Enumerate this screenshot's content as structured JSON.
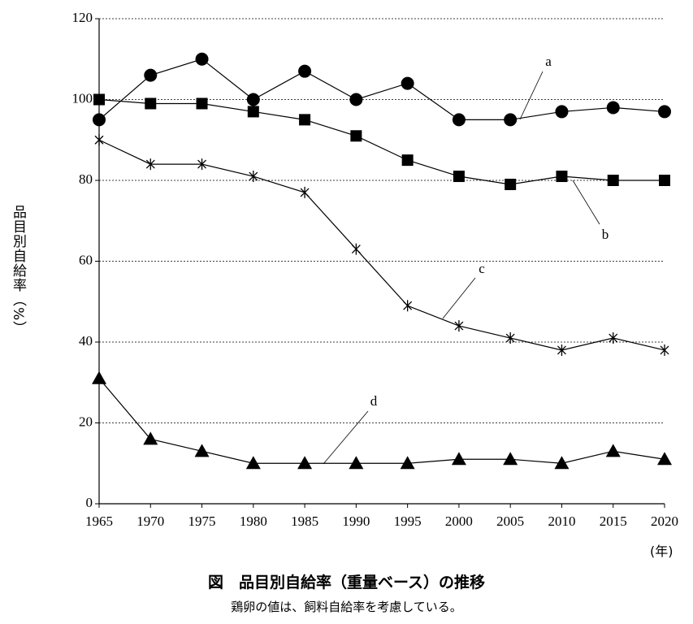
{
  "chart_data": {
    "type": "line",
    "title": "図　品目別自給率（重量ベース）の推移",
    "subtitle": "鶏卵の値は、飼料自給率を考慮している。",
    "y_label": "品目別自給率（%）",
    "x_label": "(年)",
    "x": [
      1965,
      1970,
      1975,
      1980,
      1985,
      1990,
      1995,
      2000,
      2005,
      2010,
      2015,
      2020
    ],
    "xlim": [
      1965,
      2020
    ],
    "xticks": [
      1965,
      1970,
      1975,
      1980,
      1985,
      1990,
      1995,
      2000,
      2005,
      2010,
      2015,
      2020
    ],
    "ylim": [
      0,
      120
    ],
    "yticks": [
      0,
      20,
      40,
      60,
      80,
      100,
      120
    ],
    "grid": true,
    "series": [
      {
        "name": "a",
        "color": "#000000",
        "marker": "circle",
        "values": [
          95,
          106,
          110,
          100,
          107,
          100,
          104,
          95,
          95,
          97,
          98,
          97
        ]
      },
      {
        "name": "b",
        "color": "#000000",
        "marker": "square",
        "values": [
          100,
          99,
          99,
          97,
          95,
          91,
          85,
          81,
          79,
          81,
          80,
          80
        ]
      },
      {
        "name": "c",
        "color": "#000000",
        "marker": "asterisk",
        "values": [
          90,
          84,
          84,
          81,
          77,
          63,
          49,
          44,
          41,
          38,
          41,
          38
        ]
      },
      {
        "name": "d",
        "color": "#000000",
        "marker": "triangle",
        "values": [
          31,
          16,
          13,
          10,
          10,
          10,
          10,
          11,
          11,
          10,
          13,
          11
        ]
      }
    ]
  }
}
